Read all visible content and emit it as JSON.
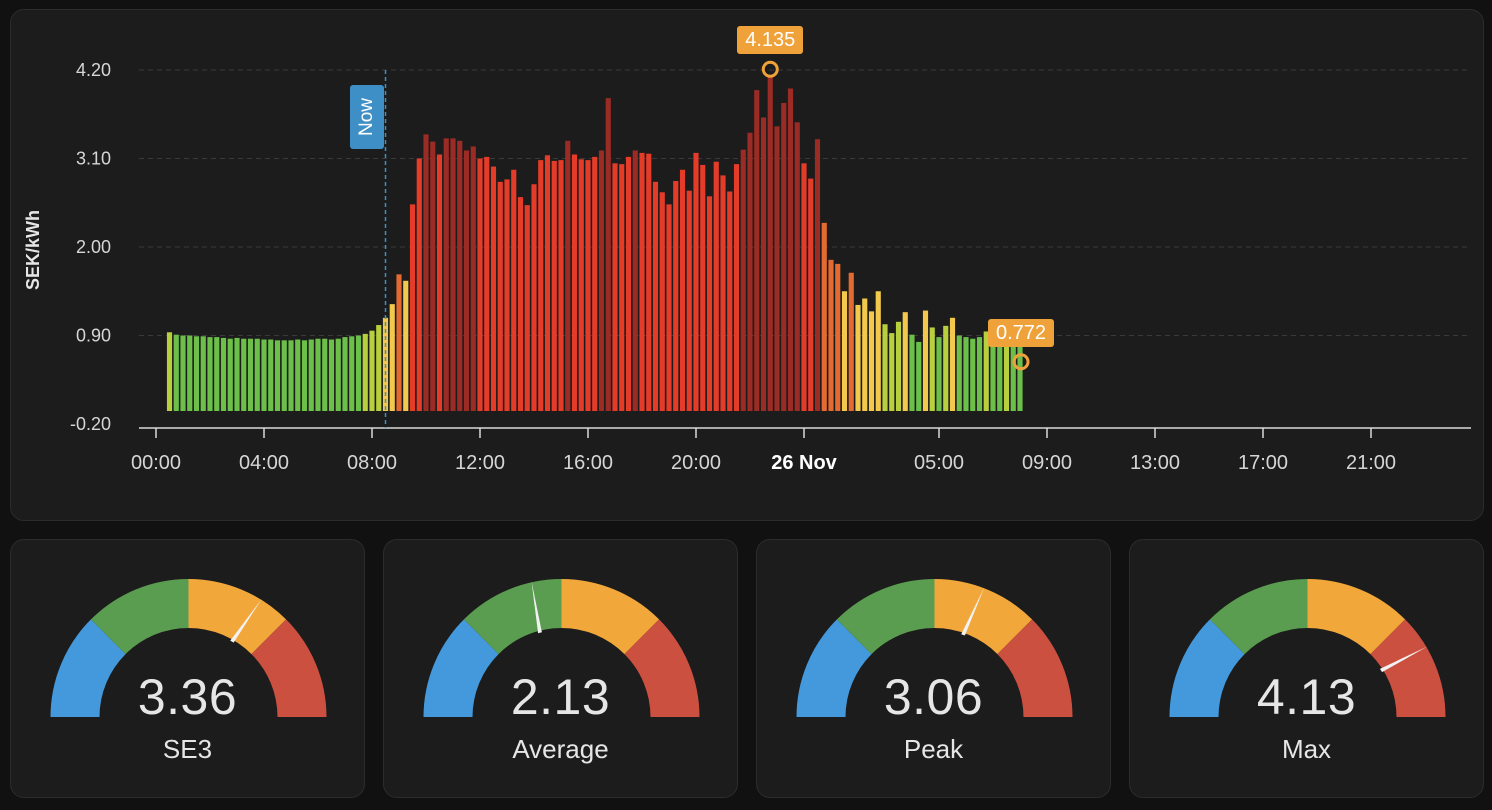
{
  "chart_data": {
    "type": "bar",
    "ylabel": "SEK/kWh",
    "y_ticks": [
      "4.20",
      "3.10",
      "2.00",
      "0.90",
      "-0.20"
    ],
    "ylim": [
      -0.2,
      4.2
    ],
    "x_ticks": [
      "00:00",
      "04:00",
      "08:00",
      "12:00",
      "16:00",
      "20:00",
      "26 Nov",
      "05:00",
      "09:00",
      "13:00",
      "17:00",
      "21:00"
    ],
    "interval_minutes": 15,
    "grid": true,
    "values": [
      0.94,
      0.91,
      0.9,
      0.9,
      0.89,
      0.89,
      0.88,
      0.88,
      0.87,
      0.86,
      0.87,
      0.86,
      0.86,
      0.86,
      0.85,
      0.85,
      0.84,
      0.84,
      0.84,
      0.85,
      0.84,
      0.85,
      0.86,
      0.86,
      0.85,
      0.86,
      0.88,
      0.89,
      0.9,
      0.92,
      0.96,
      1.03,
      1.12,
      1.29,
      1.66,
      1.58,
      2.53,
      3.1,
      3.4,
      3.31,
      3.15,
      3.35,
      3.35,
      3.32,
      3.2,
      3.25,
      3.1,
      3.12,
      3.0,
      2.81,
      2.84,
      2.96,
      2.62,
      2.52,
      2.78,
      3.08,
      3.14,
      3.07,
      3.08,
      3.32,
      3.15,
      3.09,
      3.08,
      3.12,
      3.2,
      3.85,
      3.04,
      3.03,
      3.12,
      3.2,
      3.17,
      3.16,
      2.81,
      2.68,
      2.53,
      2.82,
      2.96,
      2.7,
      3.17,
      3.02,
      2.63,
      3.06,
      2.89,
      2.69,
      3.03,
      3.21,
      3.42,
      3.95,
      3.61,
      4.14,
      3.5,
      3.79,
      3.97,
      3.55,
      3.04,
      2.85,
      3.34,
      2.3,
      1.84,
      1.79,
      1.45,
      1.68,
      1.28,
      1.36,
      1.2,
      1.45,
      1.04,
      0.93,
      1.07,
      1.19,
      0.91,
      0.82,
      1.21,
      1.0,
      0.88,
      1.02,
      1.12,
      0.9,
      0.88,
      0.86,
      0.88,
      0.95,
      0.85,
      0.9,
      0.92,
      0.82,
      0.78
    ],
    "now": "08:30",
    "annotations": [
      {
        "label": "4.135",
        "value": 4.135
      },
      {
        "label": "0.772",
        "value": 0.772
      }
    ],
    "colors": {
      "cheap": "#6cc04a",
      "below_avg": "#b8cf3e",
      "mid": "#f2c94c",
      "high": "#e36a30",
      "expensive": "#e53c2a",
      "peak": "#9b2c25"
    }
  },
  "gauges": [
    {
      "value": "3.36",
      "name": "SE3",
      "level": 3.36
    },
    {
      "value": "2.13",
      "name": "Average",
      "level": 2.13
    },
    {
      "value": "3.06",
      "name": "Peak",
      "level": 3.06
    },
    {
      "value": "4.13",
      "name": "Max",
      "level": 4.13
    }
  ],
  "gauge_colors": [
    "#4399db",
    "#5b9d50",
    "#f1a73a",
    "#cc5040"
  ],
  "gauge_range": [
    0,
    5
  ]
}
